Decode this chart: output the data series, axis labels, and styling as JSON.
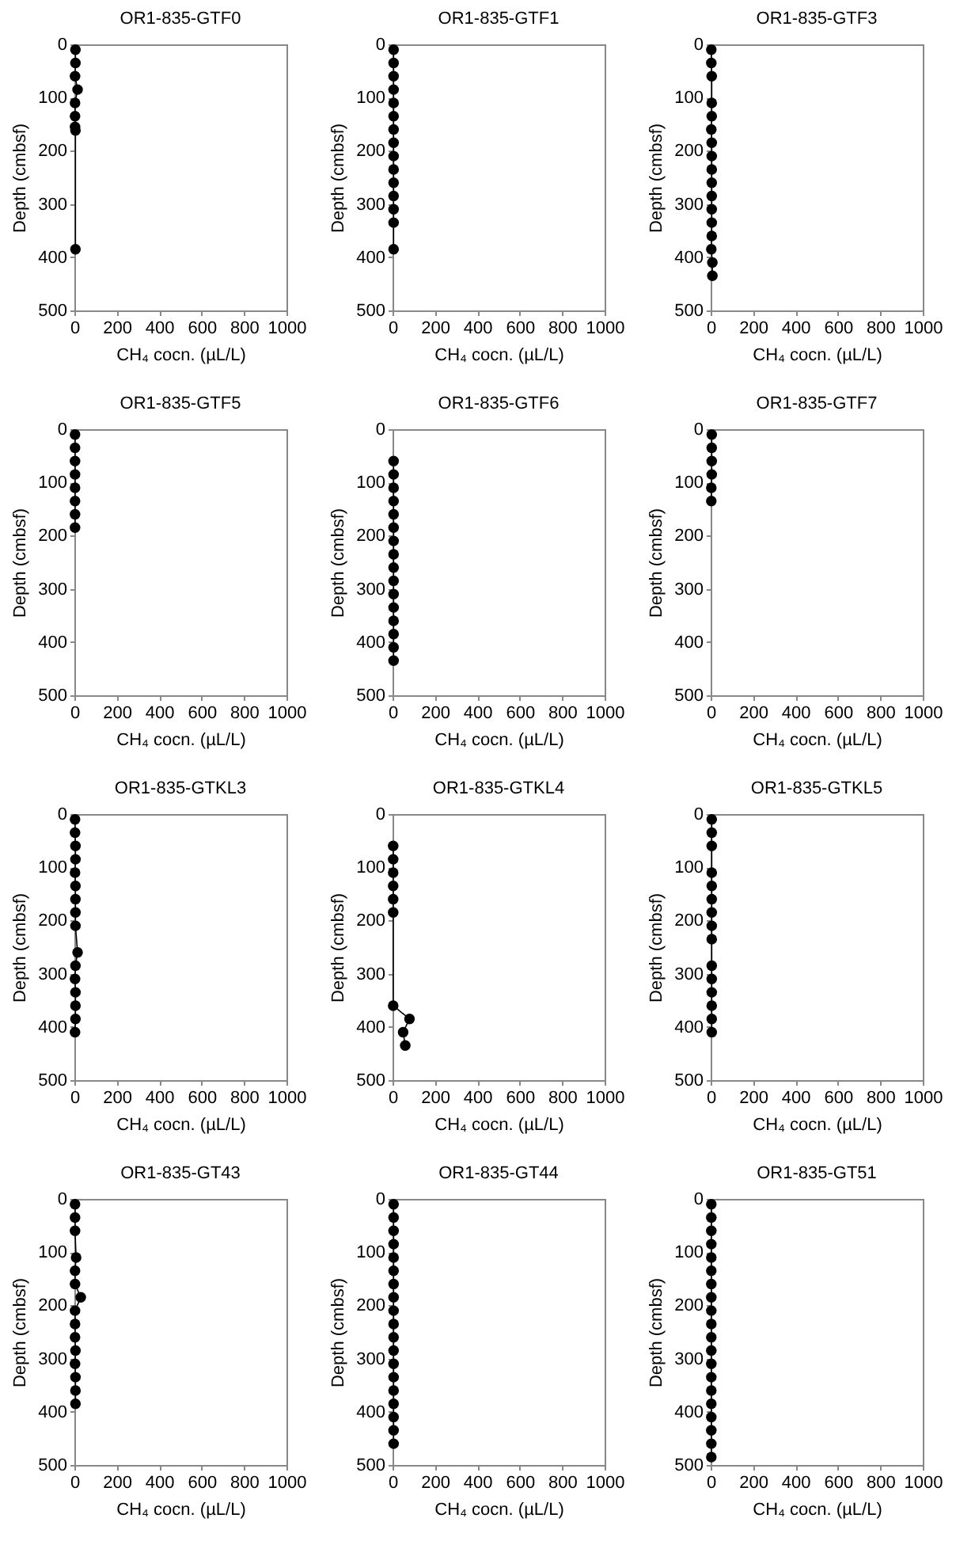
{
  "chart_data": [
    {
      "type": "line",
      "title": "OR1-835-GTF0",
      "xlabel": "CH₄ cocn. (µL/L)",
      "ylabel": "Depth (cmbsf)",
      "xlim": [
        0,
        1000
      ],
      "xticks": [
        0,
        200,
        400,
        600,
        800,
        1000
      ],
      "ylim": [
        500,
        0
      ],
      "yticks": [
        0,
        100,
        200,
        300,
        400,
        500
      ],
      "marker": "circle",
      "series": [
        {
          "color": "#000000",
          "x": [
            5,
            5,
            3,
            15,
            3,
            3,
            3,
            5,
            5
          ],
          "values": [
            10,
            35,
            60,
            85,
            110,
            135,
            155,
            162,
            385
          ]
        }
      ]
    },
    {
      "type": "line",
      "title": "OR1-835-GTF1",
      "xlabel": "CH₄ cocn. (µL/L)",
      "ylabel": "Depth (cmbsf)",
      "xlim": [
        0,
        1000
      ],
      "xticks": [
        0,
        200,
        400,
        600,
        800,
        1000
      ],
      "ylim": [
        500,
        0
      ],
      "yticks": [
        0,
        100,
        200,
        300,
        400,
        500
      ],
      "marker": "circle",
      "series": [
        {
          "color": "#000000",
          "x": [
            5,
            5,
            5,
            5,
            5,
            5,
            5,
            5,
            5,
            5,
            5,
            5,
            5,
            5,
            5
          ],
          "values": [
            10,
            35,
            60,
            85,
            110,
            135,
            160,
            185,
            210,
            235,
            260,
            285,
            310,
            335,
            385
          ]
        }
      ]
    },
    {
      "type": "line",
      "title": "OR1-835-GTF3",
      "xlabel": "CH₄ cocn. (µL/L)",
      "ylabel": "Depth (cmbsf)",
      "xlim": [
        0,
        1000
      ],
      "xticks": [
        0,
        200,
        400,
        600,
        800,
        1000
      ],
      "ylim": [
        500,
        0
      ],
      "yticks": [
        0,
        100,
        200,
        300,
        400,
        500
      ],
      "marker": "circle",
      "series": [
        {
          "color": "#000000",
          "x": [
            3,
            3,
            5,
            5,
            5,
            3,
            5,
            5,
            5,
            5,
            5,
            5,
            5,
            5,
            3,
            8,
            8
          ],
          "values": [
            10,
            35,
            60,
            110,
            135,
            160,
            185,
            210,
            235,
            260,
            285,
            310,
            335,
            360,
            385,
            410,
            435
          ]
        }
      ]
    },
    {
      "type": "line",
      "title": "OR1-835-GTF5",
      "xlabel": "CH₄ cocn. (µL/L)",
      "ylabel": "Depth (cmbsf)",
      "xlim": [
        0,
        1000
      ],
      "xticks": [
        0,
        200,
        400,
        600,
        800,
        1000
      ],
      "ylim": [
        500,
        0
      ],
      "yticks": [
        0,
        100,
        200,
        300,
        400,
        500
      ],
      "marker": "circle",
      "series": [
        {
          "color": "#000000",
          "x": [
            3,
            3,
            3,
            3,
            3,
            3,
            3,
            3
          ],
          "values": [
            10,
            35,
            60,
            85,
            110,
            135,
            160,
            185
          ]
        }
      ]
    },
    {
      "type": "line",
      "title": "OR1-835-GTF6",
      "xlabel": "CH₄ cocn. (µL/L)",
      "ylabel": "Depth (cmbsf)",
      "xlim": [
        0,
        1000
      ],
      "xticks": [
        0,
        200,
        400,
        600,
        800,
        1000
      ],
      "ylim": [
        500,
        0
      ],
      "yticks": [
        0,
        100,
        200,
        300,
        400,
        500
      ],
      "marker": "circle",
      "series": [
        {
          "color": "#000000",
          "x": [
            5,
            5,
            5,
            5,
            5,
            5,
            5,
            5,
            5,
            5,
            5,
            5,
            5,
            5,
            5,
            5
          ],
          "values": [
            60,
            85,
            110,
            135,
            160,
            185,
            210,
            235,
            260,
            285,
            310,
            335,
            360,
            385,
            410,
            435
          ]
        }
      ]
    },
    {
      "type": "line",
      "title": "OR1-835-GTF7",
      "xlabel": "CH₄ cocn. (µL/L)",
      "ylabel": "Depth (cmbsf)",
      "xlim": [
        0,
        1000
      ],
      "xticks": [
        0,
        200,
        400,
        600,
        800,
        1000
      ],
      "ylim": [
        500,
        0
      ],
      "yticks": [
        0,
        100,
        200,
        300,
        400,
        500
      ],
      "marker": "circle",
      "series": [
        {
          "color": "#000000",
          "x": [
            5,
            5,
            5,
            5,
            3,
            3
          ],
          "values": [
            10,
            35,
            60,
            85,
            110,
            135
          ]
        }
      ]
    },
    {
      "type": "line",
      "title": "OR1-835-GTKL3",
      "xlabel": "CH₄ cocn. (µL/L)",
      "ylabel": "Depth (cmbsf)",
      "xlim": [
        0,
        1000
      ],
      "xticks": [
        0,
        200,
        400,
        600,
        800,
        1000
      ],
      "ylim": [
        500,
        0
      ],
      "yticks": [
        0,
        100,
        200,
        300,
        400,
        500
      ],
      "marker": "circle",
      "series": [
        {
          "color": "#000000",
          "x": [
            3,
            3,
            5,
            5,
            3,
            5,
            5,
            5,
            5,
            15,
            5,
            3,
            5,
            5,
            5,
            3
          ],
          "values": [
            10,
            35,
            60,
            85,
            110,
            135,
            160,
            185,
            210,
            260,
            285,
            310,
            335,
            360,
            385,
            410
          ]
        }
      ]
    },
    {
      "type": "line",
      "title": "OR1-835-GTKL4",
      "xlabel": "CH₄ cocn. (µL/L)",
      "ylabel": "Depth (cmbsf)",
      "xlim": [
        0,
        1000
      ],
      "xticks": [
        0,
        200,
        400,
        600,
        800,
        1000
      ],
      "ylim": [
        500,
        0
      ],
      "yticks": [
        0,
        100,
        200,
        300,
        400,
        500
      ],
      "marker": "circle",
      "series": [
        {
          "color": "#000000",
          "x": [
            3,
            3,
            3,
            3,
            3,
            3,
            3,
            80,
            50,
            60
          ],
          "values": [
            60,
            85,
            110,
            135,
            160,
            185,
            360,
            385,
            410,
            435
          ]
        }
      ]
    },
    {
      "type": "line",
      "title": "OR1-835-GTKL5",
      "xlabel": "CH₄ cocn. (µL/L)",
      "ylabel": "Depth (cmbsf)",
      "xlim": [
        0,
        1000
      ],
      "xticks": [
        0,
        200,
        400,
        600,
        800,
        1000
      ],
      "ylim": [
        500,
        0
      ],
      "yticks": [
        0,
        100,
        200,
        300,
        400,
        500
      ],
      "marker": "circle",
      "series": [
        {
          "color": "#000000",
          "x": [
            5,
            5,
            5,
            5,
            5,
            5,
            5,
            5,
            5,
            5,
            5,
            5,
            5,
            5,
            5
          ],
          "values": [
            10,
            35,
            60,
            110,
            135,
            160,
            185,
            210,
            235,
            285,
            310,
            335,
            360,
            385,
            410
          ]
        }
      ]
    },
    {
      "type": "line",
      "title": "OR1-835-GT43",
      "xlabel": "CH₄ cocn. (µL/L)",
      "ylabel": "Depth (cmbsf)",
      "xlim": [
        0,
        1000
      ],
      "xticks": [
        0,
        200,
        400,
        600,
        800,
        1000
      ],
      "ylim": [
        500,
        0
      ],
      "yticks": [
        0,
        100,
        200,
        300,
        400,
        500
      ],
      "marker": "circle",
      "series": [
        {
          "color": "#000000",
          "x": [
            3,
            3,
            3,
            8,
            3,
            3,
            30,
            3,
            3,
            3,
            5,
            3,
            5,
            5,
            5
          ],
          "values": [
            10,
            35,
            60,
            110,
            135,
            160,
            185,
            210,
            235,
            260,
            285,
            310,
            335,
            360,
            385
          ]
        }
      ]
    },
    {
      "type": "line",
      "title": "OR1-835-GT44",
      "xlabel": "CH₄ cocn. (µL/L)",
      "ylabel": "Depth (cmbsf)",
      "xlim": [
        0,
        1000
      ],
      "xticks": [
        0,
        200,
        400,
        600,
        800,
        1000
      ],
      "ylim": [
        500,
        0
      ],
      "yticks": [
        0,
        100,
        200,
        300,
        400,
        500
      ],
      "marker": "circle",
      "series": [
        {
          "color": "#000000",
          "x": [
            5,
            5,
            5,
            5,
            5,
            5,
            5,
            5,
            5,
            5,
            5,
            5,
            5,
            5,
            5,
            5,
            5,
            5,
            5
          ],
          "values": [
            10,
            35,
            60,
            85,
            110,
            135,
            160,
            185,
            210,
            235,
            260,
            285,
            310,
            335,
            360,
            385,
            410,
            435,
            460
          ]
        }
      ]
    },
    {
      "type": "line",
      "title": "OR1-835-GT51",
      "xlabel": "CH₄ cocn. (µL/L)",
      "ylabel": "Depth (cmbsf)",
      "xlim": [
        0,
        1000
      ],
      "xticks": [
        0,
        200,
        400,
        600,
        800,
        1000
      ],
      "ylim": [
        500,
        0
      ],
      "yticks": [
        0,
        100,
        200,
        300,
        400,
        500
      ],
      "marker": "circle",
      "series": [
        {
          "color": "#000000",
          "x": [
            3,
            3,
            3,
            3,
            3,
            3,
            3,
            3,
            3,
            3,
            3,
            3,
            3,
            3,
            3,
            3,
            3,
            3,
            3,
            3
          ],
          "values": [
            10,
            35,
            60,
            85,
            110,
            135,
            160,
            185,
            210,
            235,
            260,
            285,
            310,
            335,
            360,
            385,
            410,
            435,
            460,
            485
          ]
        }
      ]
    }
  ]
}
